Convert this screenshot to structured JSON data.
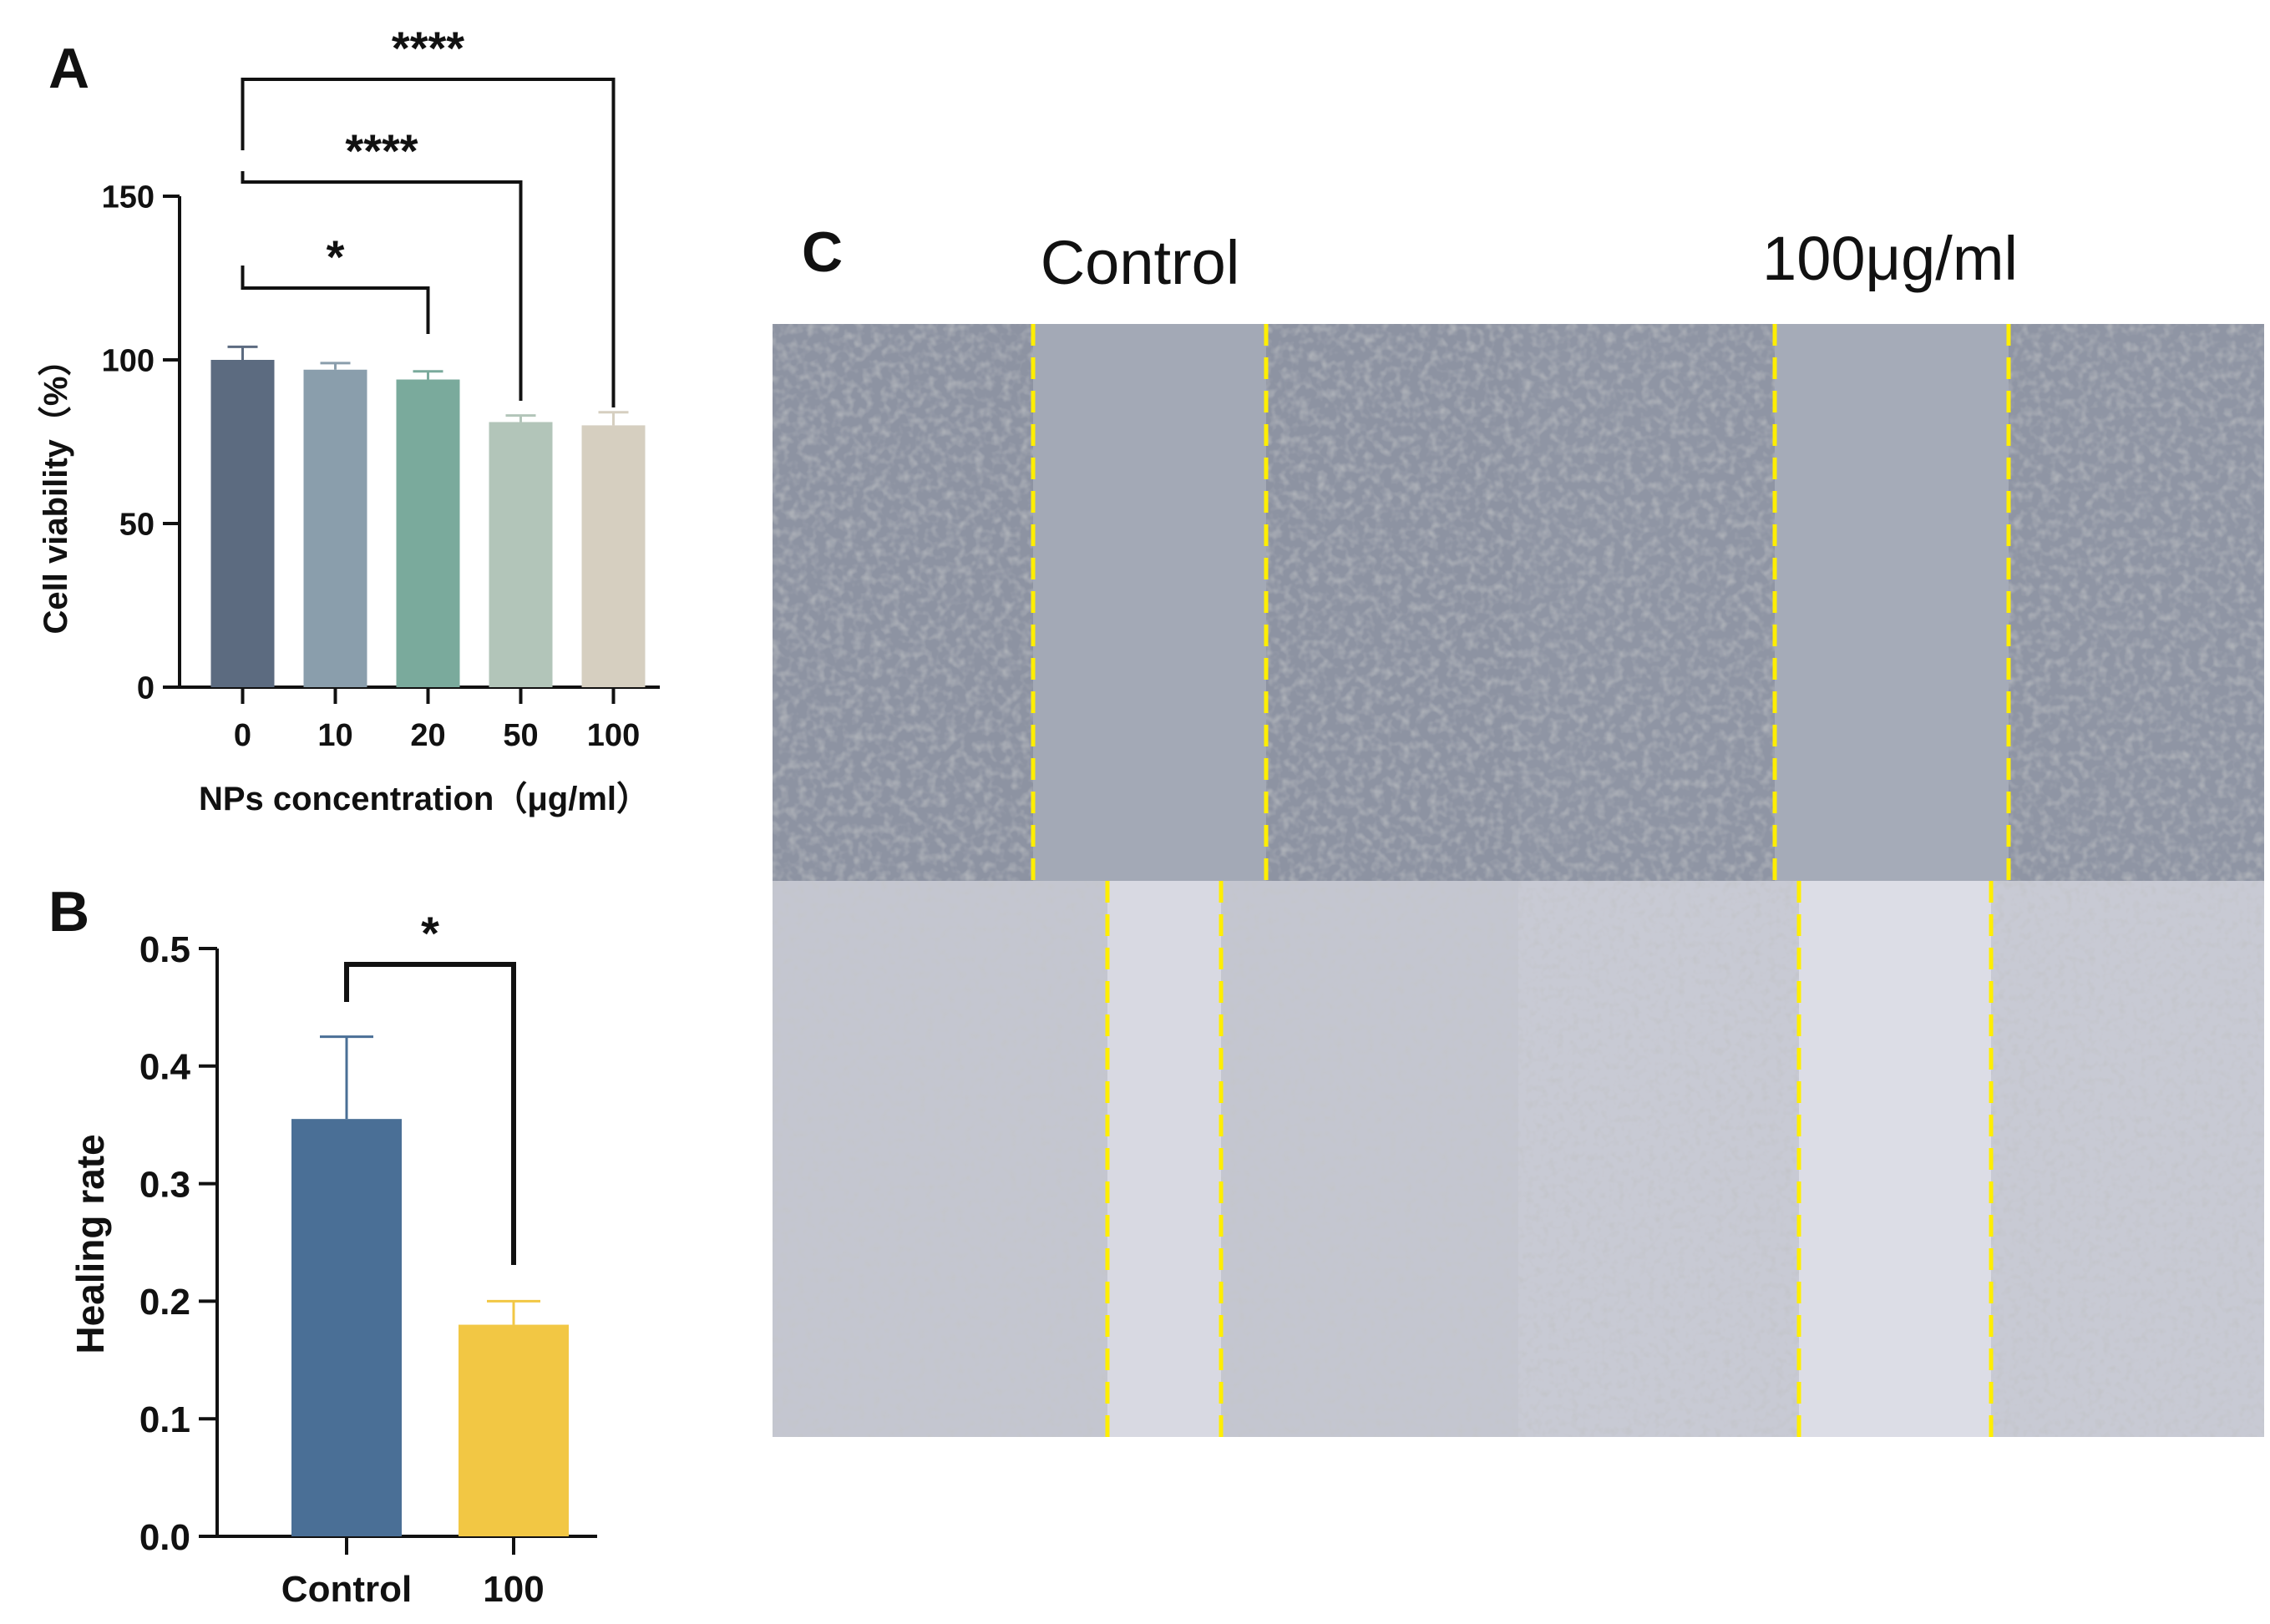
{
  "panels": {
    "a": "A",
    "b": "B",
    "c": "C"
  },
  "chart_data": [
    {
      "panel": "A",
      "type": "bar",
      "categories": [
        "0",
        "10",
        "20",
        "50",
        "100"
      ],
      "values": [
        100,
        97,
        94,
        81,
        80
      ],
      "errors": [
        4,
        2,
        2.5,
        2,
        4
      ],
      "colors": [
        "#5c6b80",
        "#8a9eac",
        "#7aaa9c",
        "#b2c5b9",
        "#d6cfc0"
      ],
      "xlabel": "NPs concentration（μg/ml）",
      "ylabel": "Cell viability（%）",
      "ylim": [
        0,
        150
      ],
      "yticks": [
        "0",
        "50",
        "100",
        "150"
      ],
      "significance": [
        {
          "from": "0",
          "to": "20",
          "label": "*"
        },
        {
          "from": "0",
          "to": "50",
          "label": "****"
        },
        {
          "from": "0",
          "to": "100",
          "label": "****"
        }
      ]
    },
    {
      "panel": "B",
      "type": "bar",
      "categories": [
        "Control",
        "100"
      ],
      "values": [
        0.355,
        0.18
      ],
      "errors": [
        0.07,
        0.02
      ],
      "colors": [
        "#4a6f96",
        "#f2c744"
      ],
      "xlabel": "",
      "ylabel": "Healing rate",
      "ylim": [
        0,
        0.5
      ],
      "yticks": [
        "0.0",
        "0.1",
        "0.2",
        "0.3",
        "0.4",
        "0.5"
      ],
      "significance": [
        {
          "from": "Control",
          "to": "100",
          "label": "*"
        }
      ]
    }
  ],
  "panel_c": {
    "columns": [
      "Control",
      "100μg/ml"
    ]
  }
}
